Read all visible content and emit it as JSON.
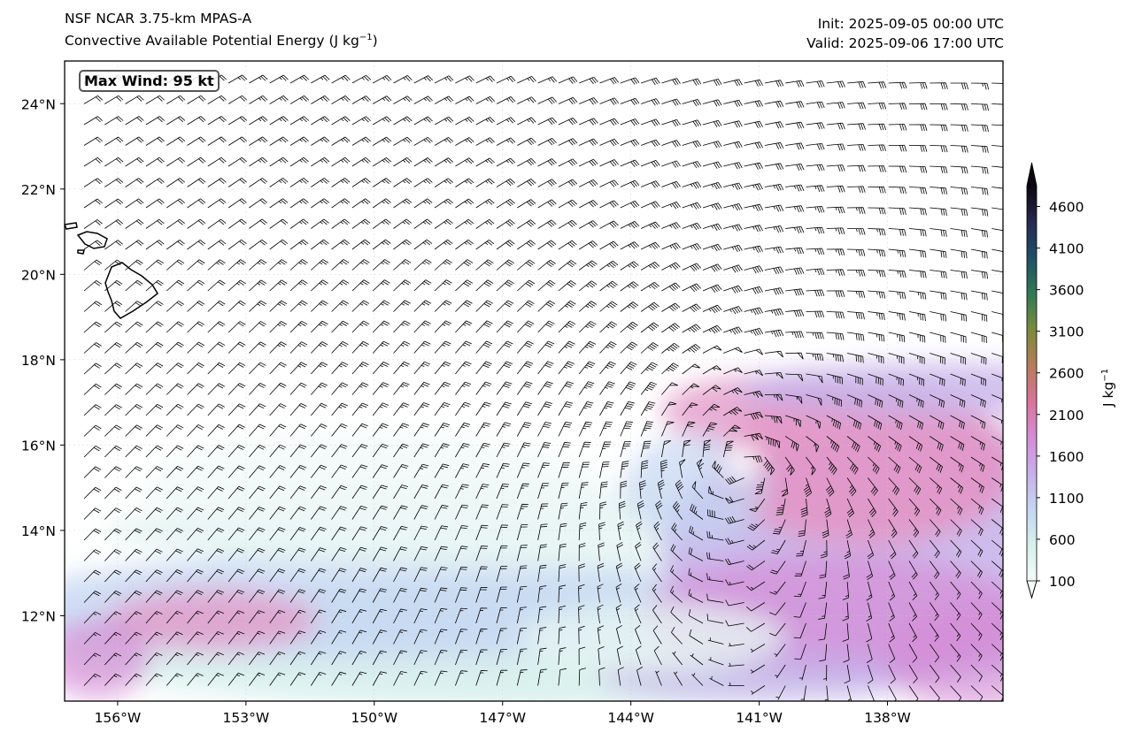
{
  "header": {
    "title_line1": "NSF NCAR 3.75-km MPAS-A",
    "title_line2": "Convective Available Potential Energy (J kg",
    "title_line2_exp": "−1",
    "title_line2_end": ")",
    "init": "Init: 2025-09-05 00:00 UTC",
    "valid": "Valid: 2025-09-06 17:00 UTC"
  },
  "badge": {
    "max_wind": "Max Wind: 95 kt"
  },
  "map": {
    "lon_range": [
      -157.24,
      -135.3
    ],
    "lat_range": [
      10.0,
      25.0
    ],
    "lon_ticks": [
      {
        "lon": -156,
        "label": "156°W"
      },
      {
        "lon": -153,
        "label": "153°W"
      },
      {
        "lon": -150,
        "label": "150°W"
      },
      {
        "lon": -147,
        "label": "147°W"
      },
      {
        "lon": -144,
        "label": "144°W"
      },
      {
        "lon": -141,
        "label": "141°W"
      },
      {
        "lon": -138,
        "label": "138°W"
      }
    ],
    "lat_ticks": [
      {
        "lat": 24,
        "label": "24°N"
      },
      {
        "lat": 22,
        "label": "22°N"
      },
      {
        "lat": 20,
        "label": "20°N"
      },
      {
        "lat": 18,
        "label": "18°N"
      },
      {
        "lat": 16,
        "label": "16°N"
      },
      {
        "lat": 14,
        "label": "14°N"
      },
      {
        "lat": 12,
        "label": "12°N"
      }
    ],
    "storm_center": {
      "lon": -141.4,
      "lat": 15.6
    },
    "max_wind_kt": 95,
    "background_wind_kt": 16
  },
  "colorbar": {
    "label": "J kg",
    "label_exp": "−1",
    "min": 100,
    "max": 4850,
    "ticks": [
      "100",
      "600",
      "1100",
      "1600",
      "2100",
      "2600",
      "3100",
      "3600",
      "4100",
      "4600"
    ],
    "colors": [
      "#f4fbf8",
      "#d6f0ec",
      "#c4d6f2",
      "#c6b0ea",
      "#d58bd6",
      "#d9739a",
      "#b77c5a",
      "#7a8a3a",
      "#2f7a55",
      "#1e4f66",
      "#26284f",
      "#0b0610"
    ]
  }
}
